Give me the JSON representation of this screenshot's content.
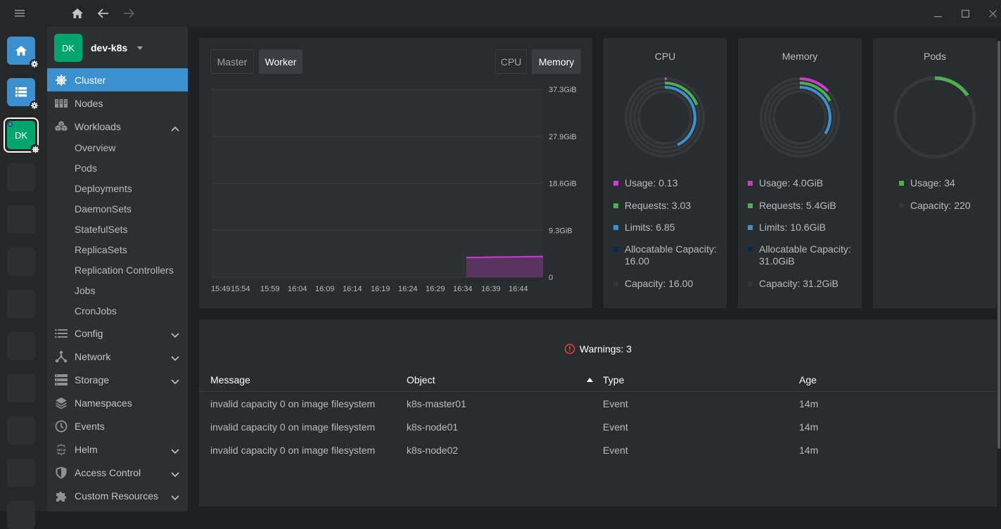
{
  "hotbar": {
    "items": [
      {
        "name": "home",
        "kind": "blue"
      },
      {
        "name": "catalog",
        "kind": "blue"
      },
      {
        "name": "cluster",
        "kind": "active",
        "initials": "DK"
      }
    ]
  },
  "sidebar": {
    "cluster_initials": "DK",
    "cluster_name": "dev-k8s",
    "items": [
      {
        "label": "Cluster",
        "icon": "helm-wheel-icon",
        "active": true
      },
      {
        "label": "Nodes",
        "icon": "nodes-icon"
      },
      {
        "label": "Workloads",
        "icon": "workloads-icon",
        "expanded": true
      },
      {
        "label": "Config",
        "icon": "config-icon"
      },
      {
        "label": "Network",
        "icon": "network-icon"
      },
      {
        "label": "Storage",
        "icon": "storage-icon"
      },
      {
        "label": "Namespaces",
        "icon": "layers-icon"
      },
      {
        "label": "Events",
        "icon": "clock-icon"
      },
      {
        "label": "Helm",
        "icon": "helm-icon"
      },
      {
        "label": "Access Control",
        "icon": "shield-icon"
      },
      {
        "label": "Custom Resources",
        "icon": "puzzle-icon"
      }
    ],
    "workloads_sub": [
      "Overview",
      "Pods",
      "Deployments",
      "DaemonSets",
      "StatefulSets",
      "ReplicaSets",
      "Replication Controllers",
      "Jobs",
      "CronJobs"
    ]
  },
  "chart": {
    "tabs_left": [
      "Master",
      "Worker"
    ],
    "tabs_right": [
      "CPU",
      "Memory"
    ],
    "selected_left": "Worker",
    "selected_right": "Memory"
  },
  "chart_data": {
    "type": "area",
    "x": [
      "15:49",
      "15:54",
      "15:59",
      "16:04",
      "16:09",
      "16:14",
      "16:19",
      "16:24",
      "16:29",
      "16:34",
      "16:39",
      "16:44"
    ],
    "y_ticks": [
      "37.3GiB",
      "27.9GiB",
      "18.6GiB",
      "9.3GiB",
      "0"
    ],
    "ylim": [
      0,
      37.3
    ],
    "series": [
      {
        "values": [
          null,
          null,
          null,
          null,
          null,
          null,
          null,
          null,
          null,
          3.9,
          4.0,
          4.1
        ],
        "color": "#c93dce"
      }
    ],
    "grid": true
  },
  "cards": [
    {
      "title": "CPU",
      "legend": [
        {
          "label": "Usage: 0.13",
          "color": "#c93dce"
        },
        {
          "label": "Requests: 3.03",
          "color": "#4caf50"
        },
        {
          "label": "Limits: 6.85",
          "color": "#3d90ce"
        },
        {
          "label": "Allocatable Capacity: 16.00",
          "color": "#032b4d"
        },
        {
          "label": "Capacity: 16.00",
          "color": "#32363a"
        }
      ],
      "rings": {
        "usage": 0.008,
        "requests": 0.19,
        "limits": 0.43
      }
    },
    {
      "title": "Memory",
      "legend": [
        {
          "label": "Usage: 4.0GiB",
          "color": "#c93dce"
        },
        {
          "label": "Requests: 5.4GiB",
          "color": "#4caf50"
        },
        {
          "label": "Limits: 10.6GiB",
          "color": "#3d90ce"
        },
        {
          "label": "Allocatable Capacity: 31.0GiB",
          "color": "#032b4d"
        },
        {
          "label": "Capacity: 31.2GiB",
          "color": "#32363a"
        }
      ],
      "rings": {
        "usage": 0.13,
        "requests": 0.17,
        "limits": 0.34
      }
    },
    {
      "title": "Pods",
      "legend": [
        {
          "label": "Usage: 34",
          "color": "#4caf50"
        },
        {
          "label": "Capacity: 220",
          "color": "#32363a"
        }
      ],
      "rings": {
        "usage": 0.155
      }
    }
  ],
  "warnings": {
    "label": "Warnings: 3",
    "columns": [
      "Message",
      "Object",
      "Type",
      "Age"
    ],
    "rows": [
      [
        "invalid capacity 0 on image filesystem",
        "k8s-master01",
        "Event",
        "14m"
      ],
      [
        "invalid capacity 0 on image filesystem",
        "k8s-node01",
        "Event",
        "14m"
      ],
      [
        "invalid capacity 0 on image filesystem",
        "k8s-node02",
        "Event",
        "14m"
      ]
    ]
  }
}
